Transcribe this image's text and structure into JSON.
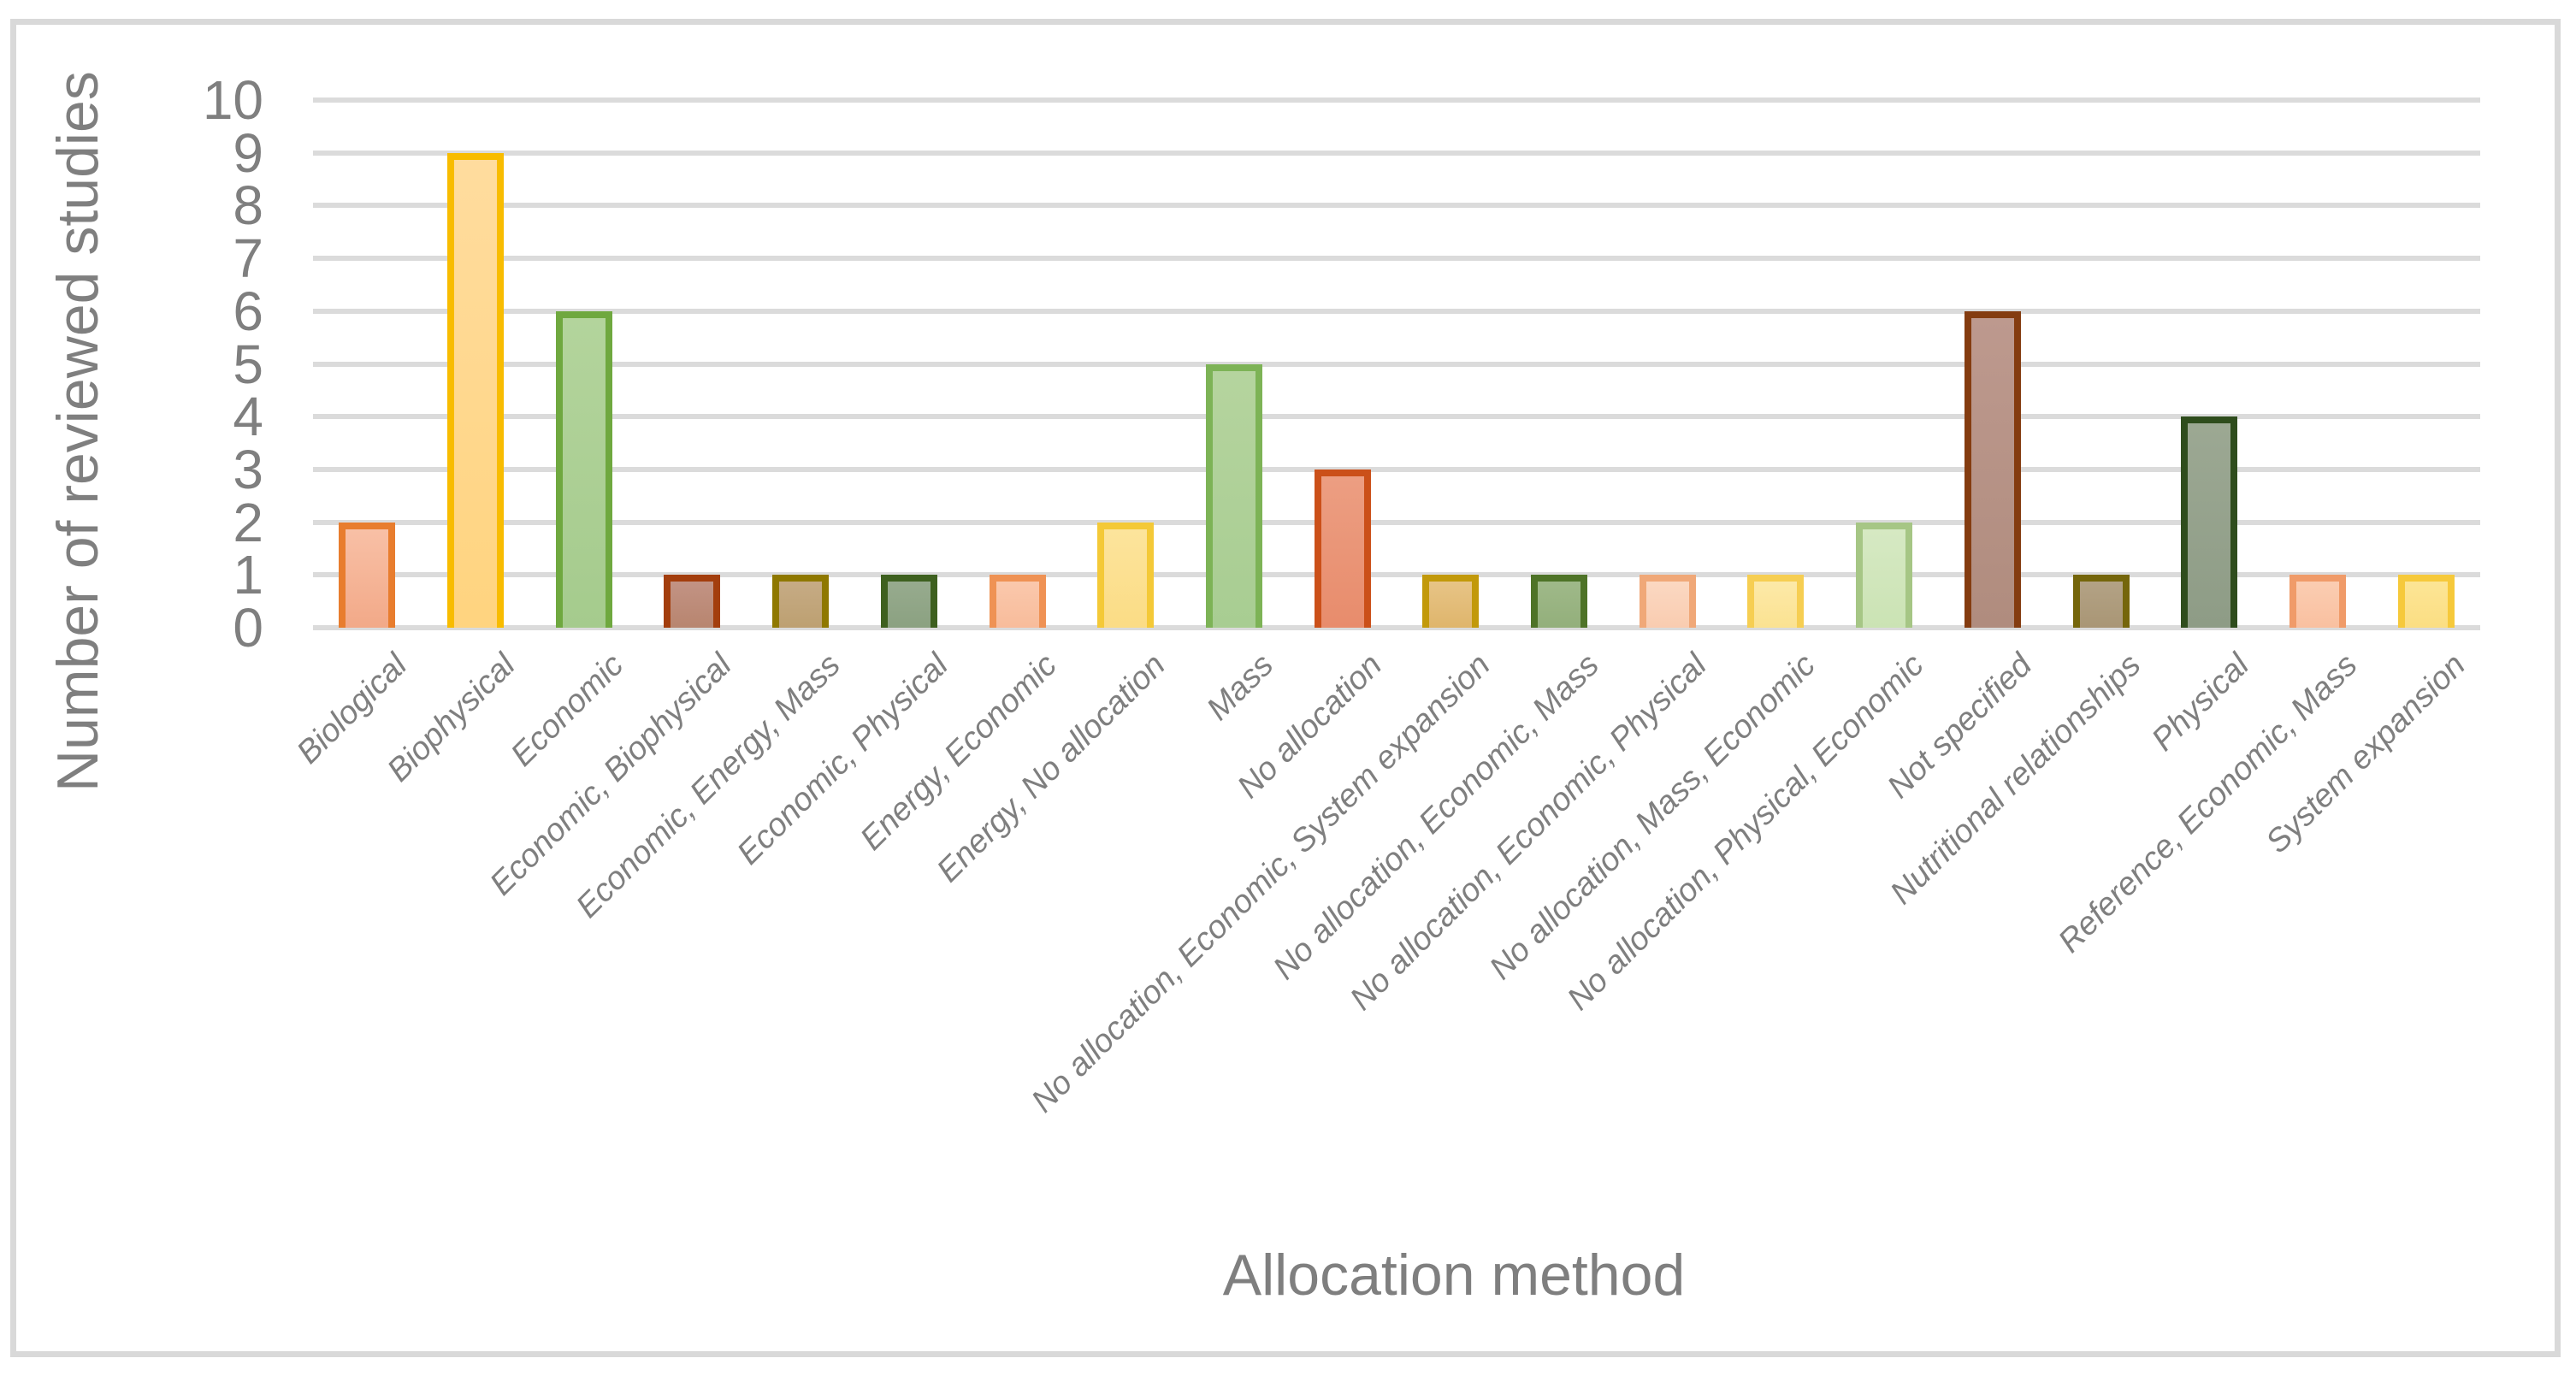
{
  "colors": {
    "frame_border": "#d9d9d9",
    "gridline": "#dbdbdb",
    "axis_text": "#7f7f7f"
  },
  "chart_data": {
    "type": "bar",
    "title": "",
    "xlabel": "Allocation method",
    "ylabel": "Number of reviewed studies",
    "ylim": [
      0,
      10
    ],
    "ytick_labels": [
      "10",
      "9",
      "8",
      "7",
      "6",
      "5",
      "4",
      "3",
      "2",
      "1",
      "0"
    ],
    "grid": true,
    "legend": "none",
    "categories": [
      "Biological",
      "Biophysical",
      "Economic",
      "Economic, Biophysical",
      "Economic, Energy, Mass",
      "Economic, Physical",
      "Energy, Economic",
      "Energy, No allocation",
      "Mass",
      "No allocation",
      "No allocation, Economic, System expansion",
      "No allocation, Economic, Mass",
      "No allocation, Economic, Physical",
      "No allocation, Mass, Economic",
      "No allocation, Physical, Economic",
      "Not specified",
      "Nutritional relationships",
      "Physical",
      "Reference, Economic, Mass",
      "System expansion"
    ],
    "values": [
      2,
      9,
      6,
      1,
      1,
      1,
      1,
      2,
      5,
      3,
      1,
      1,
      1,
      1,
      2,
      6,
      1,
      4,
      1,
      1
    ],
    "bar_styles": [
      {
        "border": "#e87d2e",
        "fill_top": "#f8c0a6",
        "fill_bottom": "#f2a988"
      },
      {
        "border": "#f8bc00",
        "fill_top": "#ffdc9e",
        "fill_bottom": "#ffd47f"
      },
      {
        "border": "#6fa83f",
        "fill_top": "#b3d49c",
        "fill_bottom": "#a5cb8d"
      },
      {
        "border": "#a33e0d",
        "fill_top": "#c29384",
        "fill_bottom": "#b8856f"
      },
      {
        "border": "#8f7800",
        "fill_top": "#c6ab85",
        "fill_bottom": "#bda071"
      },
      {
        "border": "#3e601f",
        "fill_top": "#97ab8e",
        "fill_bottom": "#8ba181"
      },
      {
        "border": "#ef9254",
        "fill_top": "#fac8ac",
        "fill_bottom": "#f8bc9b"
      },
      {
        "border": "#f4c937",
        "fill_top": "#fce49c",
        "fill_bottom": "#fbdc85"
      },
      {
        "border": "#7db356",
        "fill_top": "#b5d49e",
        "fill_bottom": "#a8cd92"
      },
      {
        "border": "#cb5019",
        "fill_top": "#ec9e82",
        "fill_bottom": "#e88c6c"
      },
      {
        "border": "#c2990a",
        "fill_top": "#e7c486",
        "fill_bottom": "#dfb56c"
      },
      {
        "border": "#4e7327",
        "fill_top": "#9fb989",
        "fill_bottom": "#93af7b"
      },
      {
        "border": "#f0a878",
        "fill_top": "#fbd8c2",
        "fill_bottom": "#f9ccb0"
      },
      {
        "border": "#f6ce52",
        "fill_top": "#fce9a8",
        "fill_bottom": "#fbe291"
      },
      {
        "border": "#a6c685",
        "fill_top": "#d6e9c3",
        "fill_bottom": "#cbe3b4"
      },
      {
        "border": "#843c10",
        "fill_top": "#bd998e",
        "fill_bottom": "#b08c7e"
      },
      {
        "border": "#75660b",
        "fill_top": "#b3a285",
        "fill_bottom": "#a99675"
      },
      {
        "border": "#2f4d1d",
        "fill_top": "#9ca893",
        "fill_bottom": "#8e9c86"
      },
      {
        "border": "#f09b69",
        "fill_top": "#fbcdb2",
        "fill_bottom": "#f9c0a0"
      },
      {
        "border": "#f6c93b",
        "fill_top": "#fce595",
        "fill_bottom": "#fbde83"
      }
    ]
  }
}
